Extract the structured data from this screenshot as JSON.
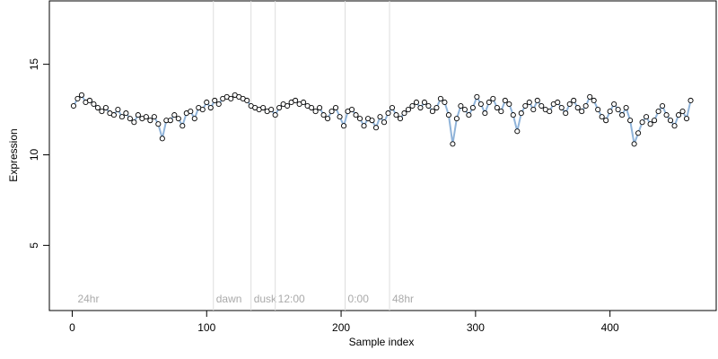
{
  "chart_data": {
    "type": "scatter",
    "xlabel": "Sample index",
    "ylabel": "Expression",
    "xlim": [
      -17,
      479
    ],
    "ylim": [
      1.4,
      18.5
    ],
    "xticks": [
      0,
      100,
      200,
      300,
      400
    ],
    "yticks": [
      5,
      10,
      15
    ],
    "line_color": "#8fb3d9",
    "point_fill": "#ffffff",
    "point_edge": "#000000",
    "annotations": [
      {
        "x": 2,
        "label": "24hr",
        "line": false
      },
      {
        "x": 105,
        "label": "dawn",
        "line": true
      },
      {
        "x": 133,
        "label": "dusk",
        "line": true
      },
      {
        "x": 151,
        "label": "12:00",
        "line": true
      },
      {
        "x": 203,
        "label": "0:00",
        "line": true
      },
      {
        "x": 236,
        "label": "48hr",
        "line": true
      }
    ],
    "x": [
      1,
      4,
      7,
      10,
      13,
      16,
      19,
      22,
      25,
      28,
      31,
      34,
      37,
      40,
      43,
      46,
      49,
      52,
      55,
      58,
      61,
      64,
      67,
      70,
      73,
      76,
      79,
      82,
      85,
      88,
      91,
      94,
      97,
      100,
      103,
      106,
      109,
      112,
      115,
      118,
      121,
      124,
      127,
      130,
      133,
      136,
      139,
      142,
      145,
      148,
      151,
      154,
      157,
      160,
      163,
      166,
      169,
      172,
      175,
      178,
      181,
      184,
      187,
      190,
      193,
      196,
      199,
      202,
      205,
      208,
      211,
      214,
      217,
      220,
      223,
      226,
      229,
      232,
      235,
      238,
      241,
      244,
      247,
      250,
      253,
      256,
      259,
      262,
      265,
      268,
      271,
      274,
      277,
      280,
      283,
      286,
      289,
      292,
      295,
      298,
      301,
      304,
      307,
      310,
      313,
      316,
      319,
      322,
      325,
      328,
      331,
      334,
      337,
      340,
      343,
      346,
      349,
      352,
      355,
      358,
      361,
      364,
      367,
      370,
      373,
      376,
      379,
      382,
      385,
      388,
      391,
      394,
      397,
      400,
      403,
      406,
      409,
      412,
      415,
      418,
      421,
      424,
      427,
      430,
      433,
      436,
      439,
      442,
      445,
      448,
      451,
      454,
      457,
      460
    ],
    "values": [
      12.7,
      13.1,
      13.3,
      12.9,
      13.0,
      12.8,
      12.6,
      12.4,
      12.6,
      12.3,
      12.2,
      12.5,
      12.1,
      12.3,
      12.0,
      11.8,
      12.2,
      12.0,
      12.1,
      11.9,
      12.1,
      11.7,
      10.9,
      11.9,
      11.9,
      12.2,
      12.0,
      11.6,
      12.3,
      12.4,
      12.0,
      12.6,
      12.5,
      12.9,
      12.6,
      13.0,
      12.8,
      13.1,
      13.2,
      13.1,
      13.3,
      13.2,
      13.1,
      13.0,
      12.7,
      12.6,
      12.5,
      12.6,
      12.4,
      12.5,
      12.2,
      12.6,
      12.8,
      12.7,
      12.9,
      13.0,
      12.8,
      12.9,
      12.7,
      12.6,
      12.4,
      12.6,
      12.2,
      12.0,
      12.4,
      12.6,
      12.1,
      11.6,
      12.4,
      12.5,
      12.2,
      12.0,
      11.6,
      12.0,
      11.9,
      11.5,
      12.1,
      11.8,
      12.3,
      12.6,
      12.2,
      12.0,
      12.3,
      12.5,
      12.7,
      12.9,
      12.6,
      12.9,
      12.7,
      12.4,
      12.6,
      13.1,
      12.9,
      12.2,
      10.6,
      12.0,
      12.7,
      12.5,
      12.2,
      12.6,
      13.2,
      12.8,
      12.3,
      12.9,
      13.1,
      12.6,
      12.4,
      13.0,
      12.8,
      12.2,
      11.3,
      12.3,
      12.7,
      12.9,
      12.5,
      13.0,
      12.7,
      12.5,
      12.4,
      12.8,
      12.9,
      12.6,
      12.3,
      12.8,
      13.0,
      12.6,
      12.4,
      12.7,
      13.2,
      13.0,
      12.5,
      12.1,
      11.9,
      12.4,
      12.8,
      12.5,
      12.2,
      12.6,
      11.9,
      10.6,
      11.2,
      11.8,
      12.1,
      11.7,
      11.9,
      12.4,
      12.7,
      12.2,
      11.9,
      11.6,
      12.2,
      12.4,
      12.0,
      13.0
    ]
  }
}
